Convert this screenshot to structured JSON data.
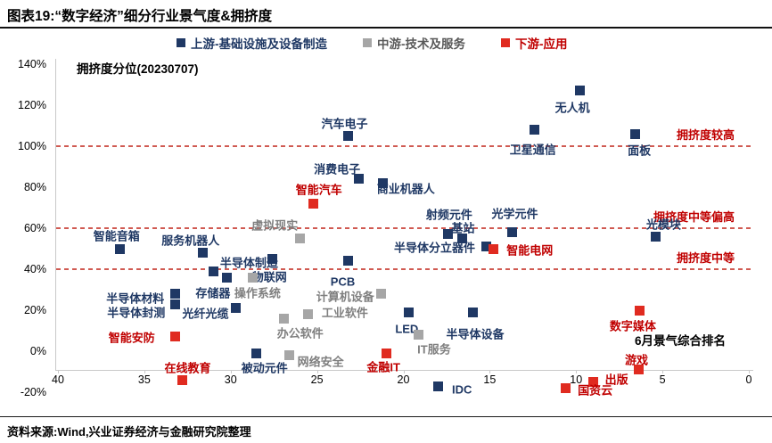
{
  "title": "图表19:“数字经济”细分行业景气度&拥挤度",
  "source": "资料来源:Wind,兴业证券经济与金融研究院整理",
  "chart_data": {
    "type": "scatter",
    "y_axis_annotation": "拥挤度分位(20230707)",
    "x_axis_title": "6月景气综合排名",
    "x_axis": {
      "min": 0,
      "max": 40,
      "reversed": true,
      "ticks": [
        40,
        35,
        30,
        25,
        20,
        15,
        10,
        5,
        0
      ]
    },
    "y_axis": {
      "min": -20,
      "max": 140,
      "unit": "%",
      "ticks": [
        140,
        120,
        100,
        80,
        60,
        40,
        20,
        0,
        -20
      ]
    },
    "axis_color": "#c9c9c9",
    "grid": false,
    "reference_line_color": "#d05a52",
    "reference_label_color": "#c00000",
    "reference_lines": [
      {
        "y": 100,
        "label": "拥挤度较高"
      },
      {
        "y": 60,
        "label": "拥挤度中等偏高"
      },
      {
        "y": 40,
        "label": "拥挤度中等"
      }
    ],
    "legend": [
      {
        "label": "上游-基础设施及设备制造",
        "color": "#1f3864",
        "text_color": "#1f3864"
      },
      {
        "label": "中游-技术及服务",
        "color": "#a6a6a6",
        "text_color": "#595959"
      },
      {
        "label": "下游-应用",
        "color": "#e02b20",
        "text_color": "#c00000"
      }
    ],
    "series": [
      {
        "name": "上游-基础设施及设备制造",
        "color": "#1f3864",
        "label_color": "#1f3864",
        "points": [
          {
            "label": "无人机",
            "x": 9.8,
            "y": 127,
            "dx": -8,
            "dy": 18
          },
          {
            "label": "汽车电子",
            "x": 23.2,
            "y": 105,
            "dx": -4,
            "dy": -15
          },
          {
            "label": "卫星通信",
            "x": 12.4,
            "y": 108,
            "dx": -2,
            "dy": 21
          },
          {
            "label": "面板",
            "x": 6.6,
            "y": 106,
            "dx": 5,
            "dy": 18
          },
          {
            "label": "消费电子",
            "x": 22.6,
            "y": 84,
            "dx": -24,
            "dy": -12
          },
          {
            "label": "商业机器人",
            "x": 21.2,
            "y": 82,
            "dx": 26,
            "dy": 6
          },
          {
            "label": "服务机器人",
            "x": 31.6,
            "y": 48,
            "dx": -14,
            "dy": -15
          },
          {
            "label": "智能音箱",
            "x": 36.4,
            "y": 50,
            "dx": -4,
            "dy": -15
          },
          {
            "label": "半导体制造",
            "x": 31,
            "y": 39,
            "dx": 40,
            "dy": -10
          },
          {
            "label": "存储器",
            "x": 30.2,
            "y": 36,
            "dx": -16,
            "dy": 17
          },
          {
            "label": "物联网",
            "x": 27.6,
            "y": 45,
            "dx": -3,
            "dy": 19
          },
          {
            "label": "半导体材料",
            "x": 33.2,
            "y": 28,
            "dx": -45,
            "dy": 4
          },
          {
            "label": "半导体封测",
            "x": 33.2,
            "y": 23,
            "dx": -44,
            "dy": 9
          },
          {
            "label": "光纤光缆",
            "x": 29.7,
            "y": 21,
            "dx": -34,
            "dy": 5
          },
          {
            "label": "PCB",
            "x": 23.2,
            "y": 44,
            "dx": -6,
            "dy": 23
          },
          {
            "label": "LED",
            "x": 19.7,
            "y": 19,
            "dx": -2,
            "dy": 19
          },
          {
            "label": "半导体设备",
            "x": 16,
            "y": 19,
            "dx": 3,
            "dy": 24
          },
          {
            "label": "射频元件",
            "x": 17.4,
            "y": 57,
            "dx": 1,
            "dy": -23
          },
          {
            "label": "基站",
            "x": 16.6,
            "y": 55,
            "dx": 1,
            "dy": -13
          },
          {
            "label": "光学元件",
            "x": 13.7,
            "y": 58,
            "dx": 3,
            "dy": -22
          },
          {
            "label": "光模块",
            "x": 5.4,
            "y": 56,
            "dx": 9,
            "dy": -14
          },
          {
            "label": "半导体分立器件",
            "x": 15.2,
            "y": 51,
            "dx": -58,
            "dy": 0
          },
          {
            "label": "被动元件",
            "x": 28.5,
            "y": -1,
            "dx": 9,
            "dy": 16
          },
          {
            "label": "IDC",
            "x": 18,
            "y": -17,
            "dx": 27,
            "dy": 4
          }
        ]
      },
      {
        "name": "中游-技术及服务",
        "color": "#a6a6a6",
        "label_color": "#7f7f7f",
        "points": [
          {
            "label": "虚拟现实",
            "x": 26,
            "y": 55,
            "dx": -28,
            "dy": -16
          },
          {
            "label": "操作系统",
            "x": 28.7,
            "y": 36,
            "dx": 5,
            "dy": 17
          },
          {
            "label": "计算机设备",
            "x": 21.3,
            "y": 28,
            "dx": -40,
            "dy": 2
          },
          {
            "label": "工业软件",
            "x": 25.5,
            "y": 18,
            "dx": 41,
            "dy": -3
          },
          {
            "label": "办公软件",
            "x": 26.9,
            "y": 16,
            "dx": 18,
            "dy": 16
          },
          {
            "label": "网络安全",
            "x": 26.6,
            "y": -2,
            "dx": 35,
            "dy": 6
          },
          {
            "label": "IT服务",
            "x": 19.1,
            "y": 8,
            "dx": 17,
            "dy": 15
          }
        ]
      },
      {
        "name": "下游-应用",
        "color": "#e02b20",
        "label_color": "#c00000",
        "points": [
          {
            "label": "智能汽车",
            "x": 25.2,
            "y": 72,
            "dx": 6,
            "dy": -16
          },
          {
            "label": "智能电网",
            "x": 14.8,
            "y": 50,
            "dx": 41,
            "dy": 1
          },
          {
            "label": "智能安防",
            "x": 33.2,
            "y": 7,
            "dx": -49,
            "dy": 0
          },
          {
            "label": "数字媒体",
            "x": 6.3,
            "y": 20,
            "dx": -8,
            "dy": 17
          },
          {
            "label": "金融IT",
            "x": 21,
            "y": -1,
            "dx": -3,
            "dy": 15
          },
          {
            "label": "在线教育",
            "x": 32.8,
            "y": -14,
            "dx": 6,
            "dy": -14
          },
          {
            "label": "游戏",
            "x": 6.4,
            "y": -9,
            "dx": -2,
            "dy": -12
          },
          {
            "label": "出版",
            "x": 9,
            "y": -15,
            "dx": 26,
            "dy": -4
          },
          {
            "label": "国资云",
            "x": 10.6,
            "y": -18,
            "dx": 33,
            "dy": 2
          }
        ]
      }
    ]
  }
}
